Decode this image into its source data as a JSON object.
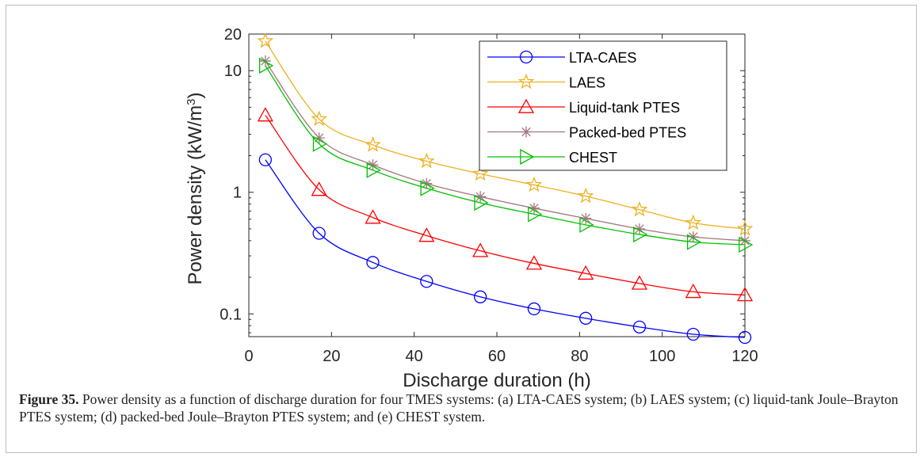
{
  "chart_data": {
    "type": "line",
    "x_scale": "linear",
    "y_scale": "log",
    "xlabel": "Discharge duration (h)",
    "ylabel_main": "Power density (kW/m",
    "ylabel_sup": "3",
    "ylabel_close": ")",
    "xlim": [
      0,
      120
    ],
    "ylim": [
      0.065,
      20
    ],
    "x_ticks": [
      0,
      20,
      40,
      60,
      80,
      100,
      120
    ],
    "x_tick_labels": [
      "0",
      "20",
      "40",
      "60",
      "80",
      "100",
      "120"
    ],
    "y_ticks": [
      0.1,
      1,
      10,
      20
    ],
    "y_tick_labels": [
      "0.1",
      "1",
      "10",
      "20"
    ],
    "grid": false,
    "legend_position": "top-right",
    "x": [
      4,
      17,
      30,
      43,
      56,
      69,
      81.5,
      94.5,
      107.5,
      120
    ],
    "series": [
      {
        "name": "LTA-CAES",
        "color": "#0000ff",
        "marker": "circle",
        "values": [
          1.85,
          0.46,
          0.265,
          0.185,
          0.138,
          0.11,
          0.092,
          0.078,
          0.068,
          0.064
        ]
      },
      {
        "name": "LAES",
        "color": "#edb120",
        "marker": "star",
        "values": [
          17.5,
          4.0,
          2.45,
          1.8,
          1.42,
          1.15,
          0.93,
          0.72,
          0.56,
          0.5
        ]
      },
      {
        "name": "Liquid-tank PTES",
        "color": "#ff0000",
        "marker": "triangle-up",
        "values": [
          4.3,
          1.05,
          0.62,
          0.44,
          0.33,
          0.26,
          0.215,
          0.178,
          0.152,
          0.143
        ]
      },
      {
        "name": "Packed-bed PTES",
        "color": "#a2777e",
        "marker": "asterisk",
        "values": [
          12.0,
          2.8,
          1.68,
          1.18,
          0.92,
          0.74,
          0.61,
          0.5,
          0.43,
          0.4
        ]
      },
      {
        "name": "CHEST",
        "color": "#00c000",
        "marker": "triangle-right",
        "values": [
          11.0,
          2.5,
          1.52,
          1.08,
          0.82,
          0.66,
          0.54,
          0.45,
          0.39,
          0.37
        ]
      }
    ]
  },
  "caption": {
    "label": "Figure 35.",
    "text": " Power density as a function of discharge duration for four TMES systems: (a) LTA-CAES system; (b) LAES system; (c) liquid-tank Joule–Brayton PTES system; (d) packed-bed Joule–Brayton PTES system; and (e) CHEST system."
  }
}
